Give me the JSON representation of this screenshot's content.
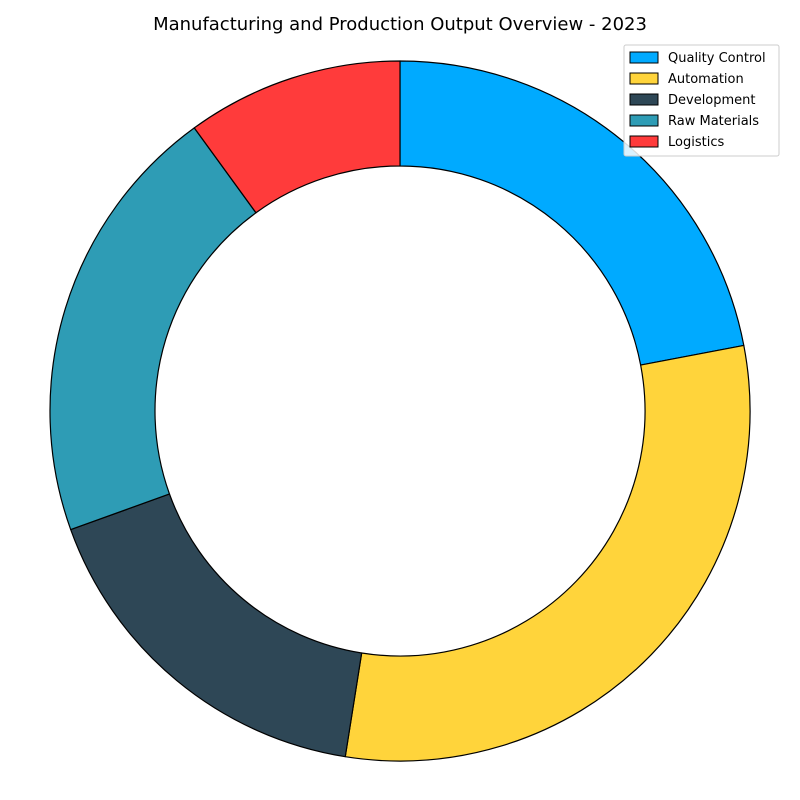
{
  "chart_data": {
    "type": "pie",
    "variant": "donut",
    "title": "Manufacturing and Production Output Overview - 2023",
    "start_angle_deg": 90,
    "direction": "clockwise",
    "legend_position": "top-right",
    "edge_color": "#000000",
    "slices": [
      {
        "label": "Quality Control",
        "value": 22.0,
        "color": "#00aaff"
      },
      {
        "label": "Automation",
        "value": 30.5,
        "color": "#ffd43b"
      },
      {
        "label": "Development",
        "value": 17.0,
        "color": "#2e4756"
      },
      {
        "label": "Raw Materials",
        "value": 20.5,
        "color": "#2e9cb5"
      },
      {
        "label": "Logistics",
        "value": 10.0,
        "color": "#ff3b3b"
      }
    ]
  }
}
